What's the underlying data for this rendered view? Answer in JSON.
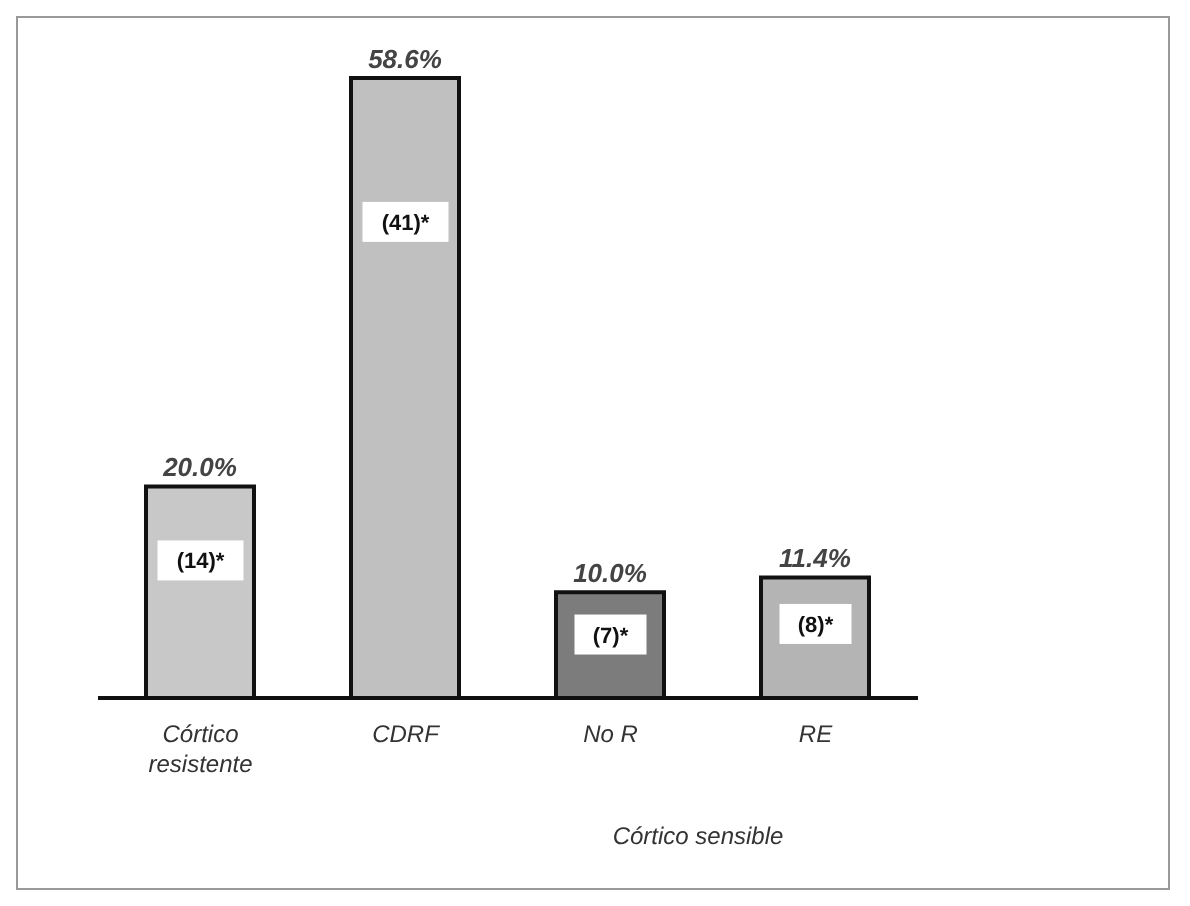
{
  "chart_data": {
    "type": "bar",
    "categories": [
      "Córtico resistente",
      "CDRF",
      "No R",
      "RE"
    ],
    "values": [
      20.0,
      58.6,
      10.0,
      11.4
    ],
    "colors": [
      "#c8c8c8",
      "#c0c0c0",
      "#7c7c7c",
      "#b4b4b4"
    ],
    "value_labels": [
      "20.0%",
      "58.6%",
      "10.0%",
      "11.4%"
    ],
    "annotations": [
      {
        "text": "(14)*",
        "x": "Córtico resistente",
        "y": 13
      },
      {
        "text": "(41)*",
        "x": "CDRF",
        "y": 45
      },
      {
        "text": "(7)*",
        "x": "No R",
        "y": 6
      },
      {
        "text": "(8)*",
        "x": "RE",
        "y": 7
      },
      "Córtico sensible"
    ],
    "grid": false,
    "legend": false
  }
}
